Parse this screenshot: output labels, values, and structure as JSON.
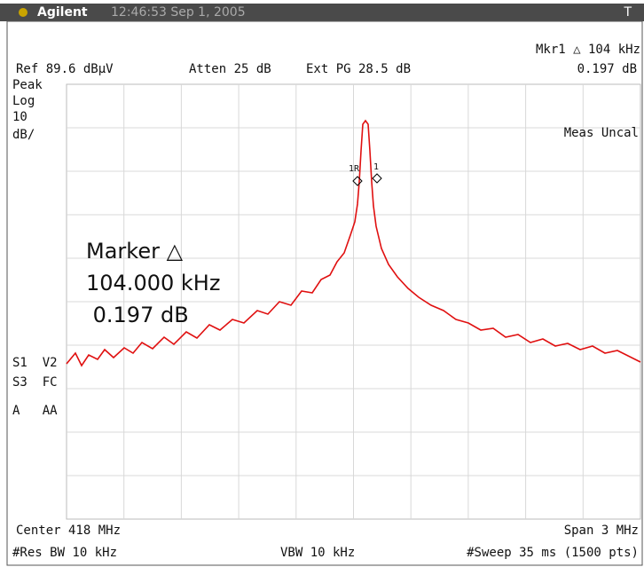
{
  "header": {
    "brand": "Agilent",
    "timestamp": "12:46:53  Sep 1, 2005",
    "mode": "T"
  },
  "status": {
    "marker": "Mkr1 △  104 kHz",
    "ref": "Ref 89.6 dBμV",
    "atten": "Atten 25 dB",
    "ext_pg": "Ext PG 28.5 dB",
    "marker_amplitude": "0.197 dB"
  },
  "scale_labels": [
    "Peak",
    "Log",
    "10",
    "dB/"
  ],
  "uncal": "Meas Uncal",
  "marker_box": [
    "Marker △",
    "104.000 kHz",
    " 0.197 dB"
  ],
  "trace_markers": [
    "1R",
    "1"
  ],
  "settings_labels": [
    "S1  V2",
    "S3  FC",
    "A   AA"
  ],
  "footer": {
    "center": "Center 418 MHz",
    "span": "Span 3 MHz",
    "rbw": "#Res BW 10 kHz",
    "vbw": "VBW 10 kHz",
    "sweep": "#Sweep 35 ms (1500 pts)"
  }
}
